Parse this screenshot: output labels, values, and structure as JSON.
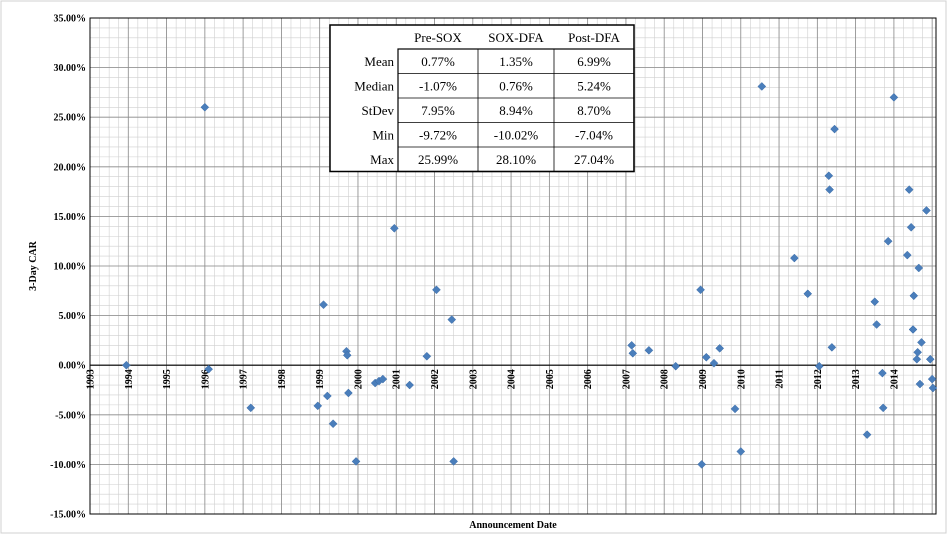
{
  "chart_data": {
    "type": "scatter",
    "xlabel": "Announcement Date",
    "ylabel": "3-Day CAR",
    "xlim": [
      1993,
      2015.1
    ],
    "ylim": [
      -15,
      35
    ],
    "x_ticks": [
      "1993",
      "1994",
      "1995",
      "1996",
      "1997",
      "1998",
      "1999",
      "2000",
      "2001",
      "2002",
      "2003",
      "2004",
      "2005",
      "2006",
      "2007",
      "2008",
      "2009",
      "2010",
      "2011",
      "2012",
      "2013",
      "2014"
    ],
    "y_ticks": [
      "-15.00%",
      "-10.00%",
      "-5.00%",
      "0.00%",
      "5.00%",
      "10.00%",
      "15.00%",
      "20.00%",
      "25.00%",
      "30.00%",
      "35.00%"
    ],
    "grid": true,
    "marker_color": "#4a7ebb",
    "points": [
      {
        "x": 1993.95,
        "y": 0.0
      },
      {
        "x": 1996.0,
        "y": 26.0
      },
      {
        "x": 1996.1,
        "y": -0.4
      },
      {
        "x": 1997.2,
        "y": -4.3
      },
      {
        "x": 1998.95,
        "y": -4.1
      },
      {
        "x": 1999.1,
        "y": 6.1
      },
      {
        "x": 1999.2,
        "y": -3.1
      },
      {
        "x": 1999.35,
        "y": -5.9
      },
      {
        "x": 1999.7,
        "y": 1.4
      },
      {
        "x": 1999.72,
        "y": 1.0
      },
      {
        "x": 1999.75,
        "y": -2.8
      },
      {
        "x": 1999.95,
        "y": -9.7
      },
      {
        "x": 2000.45,
        "y": -1.8
      },
      {
        "x": 2000.55,
        "y": -1.6
      },
      {
        "x": 2000.65,
        "y": -1.4
      },
      {
        "x": 2000.95,
        "y": 13.8
      },
      {
        "x": 2001.35,
        "y": -2.0
      },
      {
        "x": 2001.8,
        "y": 0.9
      },
      {
        "x": 2002.05,
        "y": 7.6
      },
      {
        "x": 2002.45,
        "y": 4.6
      },
      {
        "x": 2002.5,
        "y": -9.7
      },
      {
        "x": 2007.15,
        "y": 2.0
      },
      {
        "x": 2007.18,
        "y": 1.2
      },
      {
        "x": 2007.6,
        "y": 1.5
      },
      {
        "x": 2008.3,
        "y": -0.1
      },
      {
        "x": 2008.95,
        "y": 7.6
      },
      {
        "x": 2008.98,
        "y": -10.0
      },
      {
        "x": 2009.1,
        "y": 0.8
      },
      {
        "x": 2009.3,
        "y": 0.2
      },
      {
        "x": 2009.45,
        "y": 1.7
      },
      {
        "x": 2009.85,
        "y": -4.4
      },
      {
        "x": 2010.0,
        "y": -8.7
      },
      {
        "x": 2010.55,
        "y": 28.1
      },
      {
        "x": 2011.4,
        "y": 10.8
      },
      {
        "x": 2011.75,
        "y": 7.2
      },
      {
        "x": 2012.05,
        "y": -0.1
      },
      {
        "x": 2012.3,
        "y": 19.1
      },
      {
        "x": 2012.32,
        "y": 17.7
      },
      {
        "x": 2012.38,
        "y": 1.8
      },
      {
        "x": 2012.45,
        "y": 23.8
      },
      {
        "x": 2013.3,
        "y": -7.0
      },
      {
        "x": 2013.5,
        "y": 6.4
      },
      {
        "x": 2013.55,
        "y": 4.1
      },
      {
        "x": 2013.7,
        "y": -0.8
      },
      {
        "x": 2013.72,
        "y": -4.3
      },
      {
        "x": 2013.85,
        "y": 12.5
      },
      {
        "x": 2014.0,
        "y": 27.0
      },
      {
        "x": 2014.35,
        "y": 11.1
      },
      {
        "x": 2014.4,
        "y": 17.7
      },
      {
        "x": 2014.45,
        "y": 13.9
      },
      {
        "x": 2014.5,
        "y": 3.6
      },
      {
        "x": 2014.52,
        "y": 7.0
      },
      {
        "x": 2014.6,
        "y": 0.6
      },
      {
        "x": 2014.62,
        "y": 1.3
      },
      {
        "x": 2014.65,
        "y": 9.8
      },
      {
        "x": 2014.68,
        "y": -1.9
      },
      {
        "x": 2014.72,
        "y": 2.3
      },
      {
        "x": 2014.85,
        "y": 15.6
      },
      {
        "x": 2014.95,
        "y": 0.6
      },
      {
        "x": 2015.0,
        "y": -1.4
      },
      {
        "x": 2015.02,
        "y": -2.3
      }
    ],
    "stats_table": {
      "columns": [
        "Pre-SOX",
        "SOX-DFA",
        "Post-DFA"
      ],
      "rows": [
        {
          "label": "Mean",
          "values": [
            "0.77%",
            "1.35%",
            "6.99%"
          ]
        },
        {
          "label": "Median",
          "values": [
            "-1.07%",
            "0.76%",
            "5.24%"
          ]
        },
        {
          "label": "StDev",
          "values": [
            "7.95%",
            "8.94%",
            "8.70%"
          ]
        },
        {
          "label": "Min",
          "values": [
            "-9.72%",
            "-10.02%",
            "-7.04%"
          ]
        },
        {
          "label": "Max",
          "values": [
            "25.99%",
            "28.10%",
            "27.04%"
          ]
        }
      ]
    }
  }
}
